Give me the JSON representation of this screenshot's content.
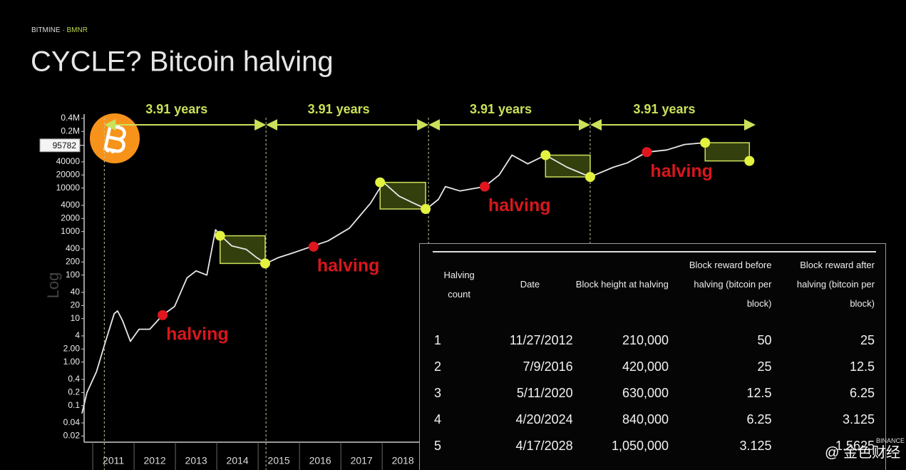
{
  "header": {
    "brand": "BITMINE",
    "separator": "·",
    "ticker": "BMNR",
    "title": "CYCLE? Bitcoin halving"
  },
  "chart_data": {
    "type": "line",
    "log_scale": true,
    "y_label": "Log",
    "color": "#e8e8e8",
    "xlim": [
      2010.74,
      2027.03
    ],
    "ylim": [
      0.015,
      500000
    ],
    "yticks": [
      {
        "value": 400000,
        "label": "0.4M"
      },
      {
        "value": 200000,
        "label": "0.2M"
      },
      40000,
      20000,
      10000,
      4000,
      2000,
      1000,
      400,
      200,
      100,
      40,
      20,
      10,
      4,
      {
        "value": 2,
        "label": "2.00"
      },
      {
        "value": 1,
        "label": "1.00"
      },
      0.4,
      0.2,
      0.1,
      0.04,
      0.02
    ],
    "current_price": 95782,
    "years": [
      2011,
      2012,
      2013,
      2014,
      2015,
      2016,
      2017,
      2018
    ],
    "x": [
      2010.74,
      2010.86,
      2011.09,
      2011.31,
      2011.52,
      2011.6,
      2011.72,
      2011.91,
      2012.12,
      2012.38,
      2012.69,
      2012.98,
      2013.28,
      2013.5,
      2013.76,
      2013.97,
      2014.1,
      2014.36,
      2014.71,
      2014.97,
      2015.19,
      2015.48,
      2015.83,
      2016.34,
      2016.69,
      2017.21,
      2017.72,
      2018.03,
      2018.41,
      2018.76,
      2019.07,
      2019.36,
      2019.53,
      2019.88,
      2020.48,
      2020.83,
      2021.14,
      2021.52,
      2021.95,
      2022.47,
      2023.03,
      2023.59,
      2023.93,
      2024.4,
      2024.88,
      2025.31,
      2025.79
    ],
    "values": [
      0.066,
      0.2,
      0.6,
      3,
      13,
      15,
      9,
      3,
      5.7,
      5.7,
      12,
      19,
      86,
      125,
      100,
      1100,
      800,
      470,
      390,
      250,
      185,
      250,
      320,
      470,
      610,
      1200,
      4500,
      13500,
      6500,
      4500,
      3300,
      5500,
      10800,
      8600,
      10800,
      20000,
      57000,
      36000,
      57000,
      30000,
      18000,
      30000,
      38000,
      67000,
      75000,
      100000,
      110000
    ],
    "halving_lines": [
      2011.28,
      2015.19,
      2019.12,
      2023.03
    ],
    "period_end": 2027.03,
    "period_labels": [
      "3.91 years",
      "3.91 years",
      "3.91 years",
      "3.91 years"
    ],
    "halving_label": "halving",
    "halvings": {
      "x": [
        2012.69,
        2016.34,
        2020.48,
        2024.4
      ],
      "values": [
        12,
        450,
        10800,
        67000
      ]
    },
    "cycle_peaks": {
      "x": [
        2014.08,
        2017.95,
        2021.95,
        2025.81
      ],
      "values": [
        800,
        13500,
        57000,
        110000
      ]
    },
    "cycle_bottoms": {
      "x": [
        2015.17,
        2019.05,
        2023.03,
        2026.88
      ],
      "values": [
        185,
        3300,
        18000,
        42000
      ]
    }
  },
  "table": {
    "columns": [
      "Halving count",
      "Date",
      "Block height at halving",
      "Block reward before halving (bitcoin per block)",
      "Block reward after halving (bitcoin per block)"
    ],
    "rows": [
      [
        "1",
        "11/27/2012",
        "210,000",
        "50",
        "25"
      ],
      [
        "2",
        "7/9/2016",
        "420,000",
        "25",
        "12.5"
      ],
      [
        "3",
        "5/11/2020",
        "630,000",
        "12.5",
        "6.25"
      ],
      [
        "4",
        "4/20/2024",
        "840,000",
        "6.25",
        "3.125"
      ],
      [
        "5",
        "4/17/2028",
        "1,050,000",
        "3.125",
        "1.5625"
      ]
    ]
  },
  "watermark": {
    "text": "@ 金色财经",
    "brand": "BINANCE"
  }
}
